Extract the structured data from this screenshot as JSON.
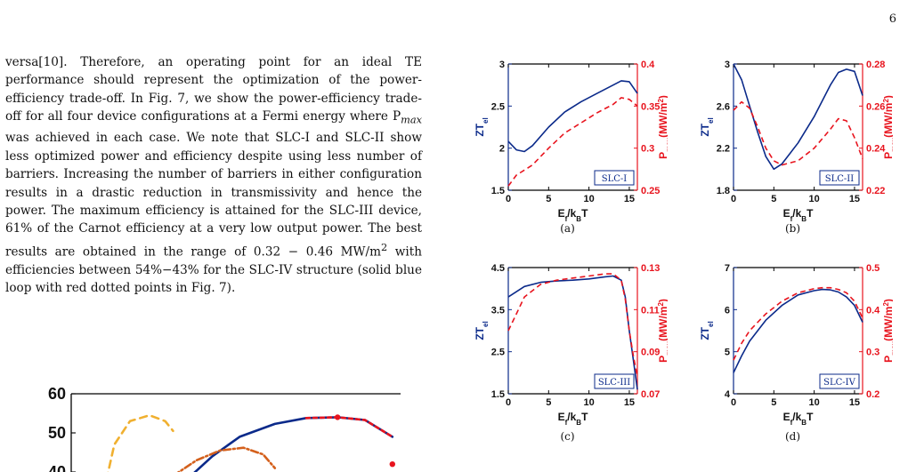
{
  "page_number": "6",
  "body_text": [
    "versa[10]. Therefore, an operating point for an ideal TE performance should represent the optimization of the power-efficiency trade-off. In Fig. 7, we show the power-efficiency trade-off for all four device configurations at a Fermi energy where P",
    "max",
    " was achieved in each case. We note that SLC-I and SLC-II show less optimized power and efficiency despite using less number of barriers. Increasing the number of barriers in either configuration results in a drastic reduction in transmissivity and hence the power. The maximum efficiency is attained for the SLC-III device, 61% of the Carnot efficiency at a very low output power. The best results are obtained in the range of 0.32 − 0.46 MW/m",
    "2",
    " with efficiencies between 54%−43% for the SLC-IV structure (solid blue loop with red dotted points in Fig. 7)."
  ],
  "colors": {
    "blue": "#0b2a8a",
    "red": "#e8141e",
    "orange": "#f0b030",
    "brown": "#d4601c"
  },
  "chart_data": [
    {
      "type": "line",
      "panel": "a",
      "caption": "(a)",
      "label": "SLC-I",
      "xlabel": "E_f/k_B T",
      "ylabel_left": "ZT_el",
      "ylabel_right": "P_max(MW/m^2)",
      "xlim": [
        0,
        16
      ],
      "xticks": [
        "0",
        "5",
        "10",
        "15"
      ],
      "ylim_left": [
        1.5,
        3
      ],
      "yticks_left": [
        "1.5",
        "2",
        "2.5",
        "3"
      ],
      "ylim_right": [
        0.25,
        0.4
      ],
      "yticks_right": [
        "0.25",
        "0.3",
        "0.35",
        "0.4"
      ],
      "series": [
        {
          "axis": "left",
          "style": "solid",
          "x": [
            0,
            1,
            2,
            3,
            5,
            7,
            9,
            11,
            13,
            14,
            15,
            16
          ],
          "y": [
            2.08,
            1.98,
            1.96,
            2.03,
            2.25,
            2.43,
            2.55,
            2.65,
            2.75,
            2.8,
            2.79,
            2.65
          ]
        },
        {
          "axis": "right",
          "style": "dashed",
          "x": [
            0,
            1,
            3,
            5,
            7,
            9,
            11,
            13,
            14,
            15,
            16
          ],
          "y": [
            0.255,
            0.268,
            0.28,
            0.3,
            0.318,
            0.33,
            0.342,
            0.352,
            0.36,
            0.358,
            0.35
          ]
        }
      ]
    },
    {
      "type": "line",
      "panel": "b",
      "caption": "(b)",
      "label": "SLC-II",
      "xlabel": "E_f/k_B T",
      "ylabel_left": "ZT_el",
      "ylabel_right": "P_max(MW/m^2)",
      "xlim": [
        0,
        16
      ],
      "xticks": [
        "0",
        "5",
        "10",
        "15"
      ],
      "ylim_left": [
        1.8,
        3
      ],
      "yticks_left": [
        "1.8",
        "2.2",
        "2.6",
        "3"
      ],
      "ylim_right": [
        0.22,
        0.28
      ],
      "yticks_right": [
        "0.22",
        "0.24",
        "0.26",
        "0.28"
      ],
      "series": [
        {
          "axis": "left",
          "style": "solid",
          "x": [
            0,
            1,
            2,
            3,
            4,
            5,
            6,
            8,
            10,
            12,
            13,
            14,
            15,
            16
          ],
          "y": [
            3.0,
            2.85,
            2.6,
            2.35,
            2.12,
            2.0,
            2.05,
            2.25,
            2.5,
            2.8,
            2.92,
            2.95,
            2.93,
            2.7
          ]
        },
        {
          "axis": "right",
          "style": "dashed",
          "x": [
            0,
            1,
            2,
            3,
            4,
            5,
            6,
            8,
            10,
            12,
            13,
            14,
            15,
            16
          ],
          "y": [
            0.258,
            0.262,
            0.259,
            0.25,
            0.24,
            0.234,
            0.232,
            0.234,
            0.24,
            0.249,
            0.254,
            0.253,
            0.245,
            0.235
          ]
        }
      ]
    },
    {
      "type": "line",
      "panel": "c",
      "caption": "(c)",
      "label": "SLC-III",
      "xlabel": "E_f/k_B T",
      "ylabel_left": "ZT_el",
      "ylabel_right": "P_max(MW/m^2)",
      "xlim": [
        0,
        16
      ],
      "xticks": [
        "0",
        "5",
        "10",
        "15"
      ],
      "ylim_left": [
        1.5,
        4.5
      ],
      "yticks_left": [
        "1.5",
        "2.5",
        "3.5",
        "4.5"
      ],
      "ylim_right": [
        0.07,
        0.13
      ],
      "yticks_right": [
        "0.07",
        "0.09",
        "0.11",
        "0.13"
      ],
      "series": [
        {
          "axis": "left",
          "style": "solid",
          "x": [
            0,
            2,
            4,
            6,
            8,
            10,
            12,
            13,
            14,
            14.5,
            15,
            15.5,
            16
          ],
          "y": [
            3.8,
            4.05,
            4.15,
            4.18,
            4.2,
            4.23,
            4.28,
            4.3,
            4.2,
            3.8,
            3.0,
            2.3,
            1.6
          ]
        },
        {
          "axis": "right",
          "style": "dashed",
          "x": [
            0,
            1,
            2,
            4,
            6,
            8,
            10,
            12,
            13,
            14,
            14.5,
            15,
            15.5,
            16
          ],
          "y": [
            0.1,
            0.108,
            0.116,
            0.122,
            0.124,
            0.125,
            0.126,
            0.127,
            0.127,
            0.124,
            0.115,
            0.1,
            0.088,
            0.078
          ]
        }
      ]
    },
    {
      "type": "line",
      "panel": "d",
      "caption": "(d)",
      "label": "SLC-IV",
      "xlabel": "E_f/k_B T",
      "ylabel_left": "ZT_el",
      "ylabel_right": "P_max(MW/m^2)",
      "xlim": [
        0,
        16
      ],
      "xticks": [
        "0",
        "5",
        "10",
        "15"
      ],
      "ylim_left": [
        4,
        7
      ],
      "yticks_left": [
        "4",
        "5",
        "6",
        "7"
      ],
      "ylim_right": [
        0.2,
        0.5
      ],
      "yticks_right": [
        "0.2",
        "0.3",
        "0.4",
        "0.5"
      ],
      "series": [
        {
          "axis": "left",
          "style": "solid",
          "x": [
            0,
            1,
            2,
            3,
            4,
            6,
            8,
            10,
            11,
            12,
            13,
            14,
            15,
            16
          ],
          "y": [
            4.5,
            4.9,
            5.25,
            5.5,
            5.75,
            6.1,
            6.35,
            6.45,
            6.48,
            6.47,
            6.42,
            6.3,
            6.1,
            5.7
          ]
        },
        {
          "axis": "right",
          "style": "dashed",
          "x": [
            0,
            1,
            2,
            3,
            4,
            6,
            8,
            10,
            11,
            12,
            13,
            14,
            15,
            16
          ],
          "y": [
            0.28,
            0.32,
            0.35,
            0.37,
            0.39,
            0.42,
            0.44,
            0.45,
            0.452,
            0.452,
            0.448,
            0.44,
            0.42,
            0.38
          ]
        }
      ]
    },
    {
      "type": "line",
      "panel": "fig7",
      "ylabel_fragment": ")",
      "yticks": [
        "40",
        "50",
        "60"
      ],
      "ylim": [
        40,
        60
      ],
      "series": [
        {
          "color_key": "blue",
          "style": "solid",
          "x": [
            3.0,
            3.6,
            4.3,
            5.2,
            6.0,
            6.8,
            7.5,
            8.2
          ],
          "y": [
            38.5,
            44.0,
            49.0,
            52.3,
            53.8,
            54.0,
            53.3,
            49.0
          ]
        },
        {
          "color_key": "red",
          "style": "dashed",
          "x": [
            6.0,
            6.8,
            7.5,
            8.2
          ],
          "y": [
            53.8,
            54.0,
            53.3,
            49.0
          ]
        },
        {
          "color_key": "orange",
          "style": "dashed",
          "x": [
            0.9,
            1.1,
            1.5,
            2.0,
            2.4,
            2.6
          ],
          "y": [
            38.0,
            47.0,
            53.0,
            54.5,
            53.0,
            50.5
          ]
        },
        {
          "color_key": "brown",
          "style": "dashdot",
          "x": [
            2.6,
            3.2,
            3.8,
            4.4,
            4.9,
            5.2
          ],
          "y": [
            39.0,
            43.0,
            45.5,
            46.2,
            44.5,
            41.0
          ]
        }
      ],
      "markers": [
        {
          "x": 6.8,
          "y": 54.0
        },
        {
          "x": 8.2,
          "y": 42.0
        }
      ]
    }
  ]
}
